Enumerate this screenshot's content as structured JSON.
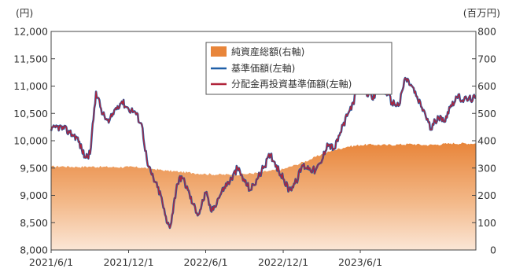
{
  "chart_data": {
    "type": "line",
    "title": "",
    "left_axis": {
      "unit_label": "(円)",
      "range": [
        8000,
        12000
      ],
      "ticks": [
        "8,000",
        "8,500",
        "9,000",
        "9,500",
        "10,000",
        "10,500",
        "11,000",
        "11,500",
        "12,000"
      ],
      "tick_values": [
        8000,
        8500,
        9000,
        9500,
        10000,
        10500,
        11000,
        11500,
        12000
      ]
    },
    "right_axis": {
      "unit_label": "(百万円)",
      "range": [
        0,
        800
      ],
      "ticks": [
        "0",
        "100",
        "200",
        "300",
        "400",
        "500",
        "600",
        "700",
        "800"
      ],
      "tick_values": [
        0,
        100,
        200,
        300,
        400,
        500,
        600,
        700,
        800
      ]
    },
    "x_axis": {
      "range": [
        "2021-06-01",
        "2024-02-29"
      ],
      "tick_labels": [
        "2021/6/1",
        "2021/12/1",
        "2022/6/1",
        "2022/12/1",
        "2023/6/1"
      ],
      "tick_dates": [
        "2021-06-01",
        "2021-12-01",
        "2022-06-01",
        "2022-12-01",
        "2023-06-01"
      ]
    },
    "grid": false,
    "legend_position": "top-center",
    "series": [
      {
        "name": "純資産総額(右軸)",
        "kind": "area",
        "axis": "right",
        "color": "#e8853a",
        "points": [
          [
            "2021-06-01",
            305
          ],
          [
            "2021-07-01",
            306
          ],
          [
            "2021-08-01",
            304
          ],
          [
            "2021-09-01",
            305
          ],
          [
            "2021-10-01",
            304
          ],
          [
            "2021-11-01",
            303
          ],
          [
            "2021-12-01",
            304
          ],
          [
            "2022-01-01",
            302
          ],
          [
            "2022-02-01",
            296
          ],
          [
            "2022-03-01",
            290
          ],
          [
            "2022-04-01",
            286
          ],
          [
            "2022-05-01",
            282
          ],
          [
            "2022-06-01",
            278
          ],
          [
            "2022-07-01",
            276
          ],
          [
            "2022-08-01",
            276
          ],
          [
            "2022-09-01",
            278
          ],
          [
            "2022-10-01",
            282
          ],
          [
            "2022-11-01",
            290
          ],
          [
            "2022-12-01",
            296
          ],
          [
            "2023-01-01",
            312
          ],
          [
            "2023-02-01",
            330
          ],
          [
            "2023-03-01",
            350
          ],
          [
            "2023-04-01",
            366
          ],
          [
            "2023-05-01",
            378
          ],
          [
            "2023-06-01",
            384
          ],
          [
            "2023-07-01",
            386
          ],
          [
            "2023-08-01",
            384
          ],
          [
            "2023-09-01",
            386
          ],
          [
            "2023-10-01",
            388
          ],
          [
            "2023-11-01",
            384
          ],
          [
            "2023-12-01",
            386
          ],
          [
            "2024-01-01",
            390
          ],
          [
            "2024-02-29",
            390
          ]
        ]
      },
      {
        "name": "基準価額(左軸)",
        "kind": "line",
        "axis": "left",
        "color": "#1f5fa8",
        "points": [
          [
            "2021-06-01",
            10180
          ],
          [
            "2021-06-15",
            10260
          ],
          [
            "2021-07-01",
            10220
          ],
          [
            "2021-07-15",
            10150
          ],
          [
            "2021-08-01",
            10060
          ],
          [
            "2021-08-20",
            9700
          ],
          [
            "2021-09-01",
            9760
          ],
          [
            "2021-09-15",
            10900
          ],
          [
            "2021-10-01",
            10480
          ],
          [
            "2021-10-15",
            10330
          ],
          [
            "2021-11-01",
            10600
          ],
          [
            "2021-11-15",
            10720
          ],
          [
            "2021-12-01",
            10580
          ],
          [
            "2021-12-15",
            10540
          ],
          [
            "2022-01-01",
            10300
          ],
          [
            "2022-01-15",
            9550
          ],
          [
            "2022-02-01",
            9250
          ],
          [
            "2022-02-15",
            9000
          ],
          [
            "2022-03-01",
            8500
          ],
          [
            "2022-03-10",
            8450
          ],
          [
            "2022-03-25",
            9200
          ],
          [
            "2022-04-05",
            9350
          ],
          [
            "2022-04-20",
            9100
          ],
          [
            "2022-05-01",
            8850
          ],
          [
            "2022-05-15",
            8650
          ],
          [
            "2022-06-01",
            9050
          ],
          [
            "2022-06-15",
            8700
          ],
          [
            "2022-07-01",
            8950
          ],
          [
            "2022-07-15",
            9150
          ],
          [
            "2022-08-01",
            9300
          ],
          [
            "2022-08-15",
            9500
          ],
          [
            "2022-09-01",
            9250
          ],
          [
            "2022-09-15",
            9100
          ],
          [
            "2022-10-01",
            9300
          ],
          [
            "2022-10-15",
            9500
          ],
          [
            "2022-11-01",
            9750
          ],
          [
            "2022-11-15",
            9550
          ],
          [
            "2022-12-01",
            9300
          ],
          [
            "2022-12-15",
            9100
          ],
          [
            "2023-01-01",
            9250
          ],
          [
            "2023-01-15",
            9550
          ],
          [
            "2023-02-01",
            9500
          ],
          [
            "2023-02-15",
            9450
          ],
          [
            "2023-03-01",
            9600
          ],
          [
            "2023-03-15",
            9950
          ],
          [
            "2023-04-01",
            9850
          ],
          [
            "2023-04-15",
            10150
          ],
          [
            "2023-05-01",
            10450
          ],
          [
            "2023-05-15",
            10700
          ],
          [
            "2023-06-01",
            11050
          ],
          [
            "2023-06-15",
            10900
          ],
          [
            "2023-07-01",
            10750
          ],
          [
            "2023-07-15",
            11000
          ],
          [
            "2023-08-01",
            10900
          ],
          [
            "2023-08-15",
            10700
          ],
          [
            "2023-09-01",
            10650
          ],
          [
            "2023-09-15",
            11150
          ],
          [
            "2023-10-01",
            11000
          ],
          [
            "2023-10-15",
            10750
          ],
          [
            "2023-11-01",
            10500
          ],
          [
            "2023-11-15",
            10200
          ],
          [
            "2023-12-01",
            10450
          ],
          [
            "2023-12-15",
            10350
          ],
          [
            "2024-01-01",
            10650
          ],
          [
            "2024-01-15",
            10800
          ],
          [
            "2024-02-01",
            10750
          ],
          [
            "2024-02-29",
            10780
          ]
        ]
      },
      {
        "name": "分配金再投資基準価額(左軸)",
        "kind": "line",
        "axis": "left",
        "color": "#b0243a",
        "points": [
          [
            "2021-06-01",
            10180
          ],
          [
            "2021-06-15",
            10260
          ],
          [
            "2021-07-01",
            10220
          ],
          [
            "2021-07-15",
            10150
          ],
          [
            "2021-08-01",
            10060
          ],
          [
            "2021-08-20",
            9700
          ],
          [
            "2021-09-01",
            9760
          ],
          [
            "2021-09-15",
            10900
          ],
          [
            "2021-10-01",
            10480
          ],
          [
            "2021-10-15",
            10330
          ],
          [
            "2021-11-01",
            10600
          ],
          [
            "2021-11-15",
            10720
          ],
          [
            "2021-12-01",
            10580
          ],
          [
            "2021-12-15",
            10540
          ],
          [
            "2022-01-01",
            10300
          ],
          [
            "2022-01-15",
            9550
          ],
          [
            "2022-02-01",
            9250
          ],
          [
            "2022-02-15",
            9000
          ],
          [
            "2022-03-01",
            8500
          ],
          [
            "2022-03-10",
            8450
          ],
          [
            "2022-03-25",
            9200
          ],
          [
            "2022-04-05",
            9350
          ],
          [
            "2022-04-20",
            9100
          ],
          [
            "2022-05-01",
            8850
          ],
          [
            "2022-05-15",
            8650
          ],
          [
            "2022-06-01",
            9050
          ],
          [
            "2022-06-15",
            8700
          ],
          [
            "2022-07-01",
            8950
          ],
          [
            "2022-07-15",
            9150
          ],
          [
            "2022-08-01",
            9300
          ],
          [
            "2022-08-15",
            9500
          ],
          [
            "2022-09-01",
            9250
          ],
          [
            "2022-09-15",
            9100
          ],
          [
            "2022-10-01",
            9300
          ],
          [
            "2022-10-15",
            9500
          ],
          [
            "2022-11-01",
            9750
          ],
          [
            "2022-11-15",
            9550
          ],
          [
            "2022-12-01",
            9300
          ],
          [
            "2022-12-15",
            9100
          ],
          [
            "2023-01-01",
            9250
          ],
          [
            "2023-01-15",
            9550
          ],
          [
            "2023-02-01",
            9500
          ],
          [
            "2023-02-15",
            9450
          ],
          [
            "2023-03-01",
            9600
          ],
          [
            "2023-03-15",
            9950
          ],
          [
            "2023-04-01",
            9850
          ],
          [
            "2023-04-15",
            10150
          ],
          [
            "2023-05-01",
            10450
          ],
          [
            "2023-05-15",
            10700
          ],
          [
            "2023-06-01",
            11050
          ],
          [
            "2023-06-15",
            10900
          ],
          [
            "2023-07-01",
            10750
          ],
          [
            "2023-07-15",
            11000
          ],
          [
            "2023-08-01",
            10900
          ],
          [
            "2023-08-15",
            10700
          ],
          [
            "2023-09-01",
            10650
          ],
          [
            "2023-09-15",
            11150
          ],
          [
            "2023-10-01",
            11000
          ],
          [
            "2023-10-15",
            10750
          ],
          [
            "2023-11-01",
            10500
          ],
          [
            "2023-11-15",
            10200
          ],
          [
            "2023-12-01",
            10450
          ],
          [
            "2023-12-15",
            10350
          ],
          [
            "2024-01-01",
            10650
          ],
          [
            "2024-01-15",
            10800
          ],
          [
            "2024-02-01",
            10750
          ],
          [
            "2024-02-29",
            10780
          ]
        ]
      }
    ]
  }
}
